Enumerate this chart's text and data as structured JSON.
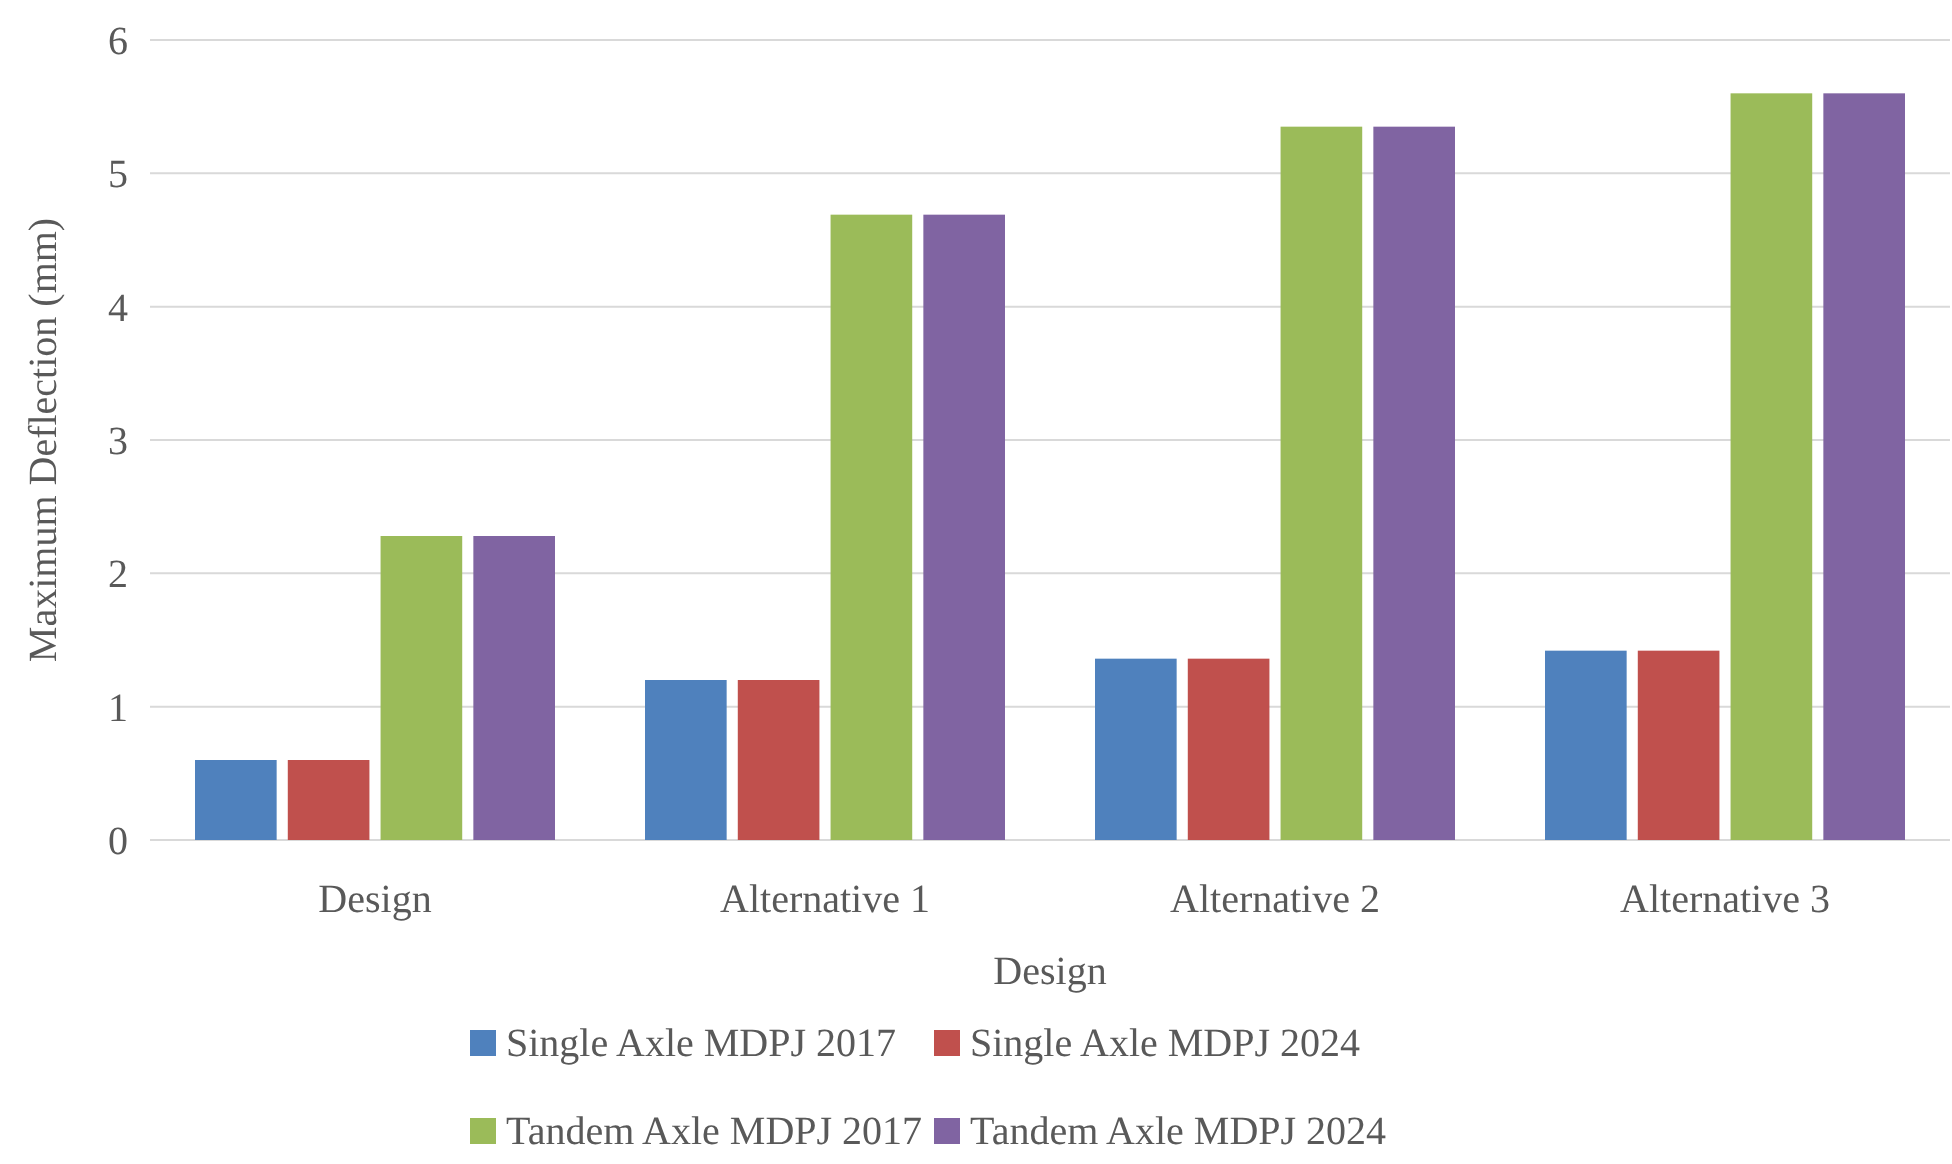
{
  "chart_data": {
    "type": "bar",
    "xlabel": "Design",
    "ylabel": "Maximum Deflection (mm)",
    "categories": [
      "Design",
      "Alternative 1",
      "Alternative 2",
      "Alternative 3"
    ],
    "series": [
      {
        "name": "Single Axle MDPJ 2017",
        "color": "#4f81bd",
        "values": [
          0.6,
          1.2,
          1.36,
          1.42
        ]
      },
      {
        "name": "Single Axle MDPJ 2024",
        "color": "#c0504d",
        "values": [
          0.6,
          1.2,
          1.36,
          1.42
        ]
      },
      {
        "name": "Tandem Axle MDPJ 2017",
        "color": "#9bbb59",
        "values": [
          2.28,
          4.69,
          5.35,
          5.6
        ]
      },
      {
        "name": "Tandem Axle MDPJ 2024",
        "color": "#8064a2",
        "values": [
          2.28,
          4.69,
          5.35,
          5.6
        ]
      }
    ],
    "ylim": [
      0,
      6
    ],
    "yticks": [
      0,
      1,
      2,
      3,
      4,
      5,
      6
    ],
    "grid": "y",
    "legend": "bottom"
  }
}
